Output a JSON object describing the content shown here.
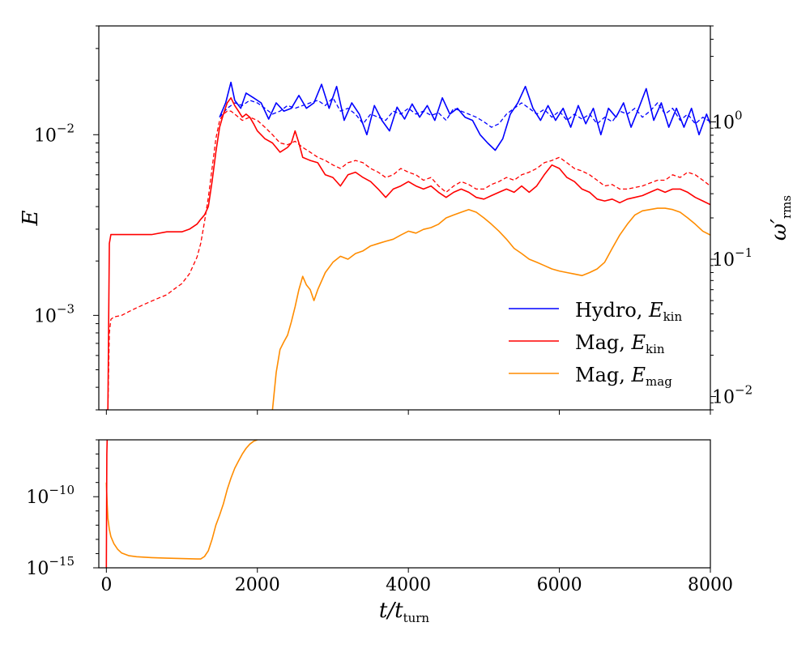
{
  "chart_data": [
    {
      "type": "line",
      "panel": "top",
      "title": "",
      "xlabel": "",
      "ylabel": "E",
      "ylabel_right": "ω′",
      "ylabel_right_sub": "rms",
      "yscale": "log",
      "xlim": [
        -100,
        8000
      ],
      "ylim": [
        0.0003,
        0.04
      ],
      "y2lim": [
        0.008,
        5.0
      ],
      "yticks": [
        {
          "value": 0.001,
          "base": "10",
          "exp": "−3"
        },
        {
          "value": 0.01,
          "base": "10",
          "exp": "−2"
        }
      ],
      "y2ticks": [
        {
          "value": 0.01,
          "base": "10",
          "exp": "−2"
        },
        {
          "value": 0.1,
          "base": "10",
          "exp": "−1"
        },
        {
          "value": 1.0,
          "base": "10",
          "exp": "0"
        }
      ],
      "legend_position": "lower-right",
      "legend": [
        {
          "text": "Hydro, ",
          "sym": "E",
          "sub": "kin",
          "color": "#0000ff"
        },
        {
          "text": "Mag, ",
          "sym": "E",
          "sub": "kin",
          "color": "#ff0000"
        },
        {
          "text": "Mag, ",
          "sym": "E",
          "sub": "mag",
          "color": "#ff8c00"
        }
      ],
      "series": [
        {
          "name": "Hydro, E_kin",
          "color": "#0000ff",
          "style": "solid",
          "x": [
            1500,
            1580,
            1650,
            1700,
            1780,
            1850,
            1950,
            2050,
            2150,
            2250,
            2350,
            2450,
            2550,
            2650,
            2750,
            2850,
            2950,
            3050,
            3150,
            3250,
            3350,
            3450,
            3550,
            3650,
            3750,
            3850,
            3950,
            4050,
            4150,
            4250,
            4350,
            4450,
            4550,
            4650,
            4750,
            4850,
            4950,
            5050,
            5150,
            5250,
            5350,
            5450,
            5550,
            5650,
            5750,
            5850,
            5950,
            6050,
            6150,
            6250,
            6350,
            6450,
            6550,
            6650,
            6750,
            6850,
            6950,
            7050,
            7150,
            7250,
            7350,
            7450,
            7550,
            7650,
            7750,
            7850,
            7950,
            8000
          ],
          "y": [
            0.0125,
            0.015,
            0.0195,
            0.0155,
            0.014,
            0.017,
            0.016,
            0.015,
            0.0122,
            0.015,
            0.0135,
            0.014,
            0.0165,
            0.014,
            0.015,
            0.019,
            0.014,
            0.0185,
            0.012,
            0.015,
            0.013,
            0.01,
            0.0145,
            0.012,
            0.0105,
            0.0142,
            0.0122,
            0.0148,
            0.0125,
            0.0145,
            0.012,
            0.016,
            0.013,
            0.014,
            0.0125,
            0.012,
            0.01,
            0.009,
            0.0082,
            0.0095,
            0.013,
            0.015,
            0.0185,
            0.014,
            0.012,
            0.0145,
            0.012,
            0.014,
            0.011,
            0.0145,
            0.0115,
            0.014,
            0.01,
            0.014,
            0.0125,
            0.015,
            0.011,
            0.014,
            0.018,
            0.012,
            0.015,
            0.011,
            0.014,
            0.011,
            0.014,
            0.01,
            0.013,
            0.0115
          ]
        },
        {
          "name": "Hydro, E_kin (dashed)",
          "color": "#0000ff",
          "style": "dashed",
          "x": [
            1500,
            1600,
            1700,
            1800,
            1900,
            2000,
            2100,
            2200,
            2300,
            2400,
            2500,
            2600,
            2700,
            2800,
            2900,
            3000,
            3100,
            3200,
            3300,
            3400,
            3500,
            3600,
            3700,
            3800,
            3900,
            4000,
            4100,
            4200,
            4300,
            4400,
            4500,
            4600,
            4700,
            4800,
            4900,
            5000,
            5100,
            5200,
            5300,
            5400,
            5500,
            5600,
            5700,
            5800,
            5900,
            6000,
            6100,
            6200,
            6300,
            6400,
            6500,
            6600,
            6700,
            6800,
            6900,
            7000,
            7100,
            7200,
            7300,
            7400,
            7500,
            7600,
            7700,
            7800,
            7900,
            8000
          ],
          "y": [
            0.0125,
            0.014,
            0.015,
            0.0145,
            0.0155,
            0.015,
            0.014,
            0.013,
            0.0135,
            0.0145,
            0.014,
            0.0145,
            0.015,
            0.0155,
            0.0145,
            0.016,
            0.0135,
            0.014,
            0.013,
            0.0115,
            0.013,
            0.0125,
            0.012,
            0.0135,
            0.013,
            0.014,
            0.013,
            0.0135,
            0.0128,
            0.0132,
            0.012,
            0.014,
            0.0135,
            0.013,
            0.0125,
            0.0118,
            0.011,
            0.0115,
            0.013,
            0.014,
            0.015,
            0.014,
            0.013,
            0.0138,
            0.0125,
            0.0135,
            0.012,
            0.013,
            0.0122,
            0.013,
            0.0115,
            0.0125,
            0.0118,
            0.0135,
            0.013,
            0.014,
            0.0125,
            0.0135,
            0.015,
            0.013,
            0.014,
            0.012,
            0.013,
            0.0115,
            0.0125,
            0.0118
          ]
        },
        {
          "name": "Mag, E_kin",
          "color": "#ff0000",
          "style": "solid",
          "x": [
            0,
            20,
            40,
            60,
            100,
            200,
            400,
            600,
            800,
            1000,
            1100,
            1200,
            1250,
            1300,
            1350,
            1400,
            1450,
            1500,
            1550,
            1600,
            1650,
            1700,
            1750,
            1800,
            1850,
            1900,
            1950,
            2000,
            2100,
            2200,
            2300,
            2400,
            2450,
            2500,
            2550,
            2600,
            2700,
            2800,
            2900,
            3000,
            3100,
            3200,
            3300,
            3400,
            3500,
            3600,
            3700,
            3800,
            3900,
            4000,
            4100,
            4200,
            4300,
            4400,
            4500,
            4600,
            4700,
            4800,
            4900,
            5000,
            5100,
            5200,
            5300,
            5400,
            5500,
            5600,
            5700,
            5800,
            5900,
            6000,
            6100,
            6200,
            6300,
            6400,
            6500,
            6600,
            6700,
            6800,
            6900,
            7000,
            7100,
            7200,
            7300,
            7400,
            7500,
            7600,
            7700,
            7800,
            7900,
            8000
          ],
          "y": [
            0.0003,
            0.0003,
            0.0025,
            0.0028,
            0.0028,
            0.0028,
            0.0028,
            0.0028,
            0.0029,
            0.0029,
            0.003,
            0.0032,
            0.0034,
            0.0036,
            0.004,
            0.0055,
            0.008,
            0.011,
            0.013,
            0.015,
            0.016,
            0.0145,
            0.0135,
            0.0125,
            0.013,
            0.0125,
            0.0115,
            0.0105,
            0.0095,
            0.009,
            0.008,
            0.0085,
            0.009,
            0.0105,
            0.009,
            0.0075,
            0.0072,
            0.007,
            0.006,
            0.0058,
            0.0052,
            0.006,
            0.0062,
            0.0058,
            0.0055,
            0.005,
            0.0045,
            0.005,
            0.0052,
            0.0055,
            0.0052,
            0.005,
            0.0052,
            0.0048,
            0.0045,
            0.0048,
            0.005,
            0.0048,
            0.0045,
            0.0044,
            0.0046,
            0.0048,
            0.005,
            0.0048,
            0.0052,
            0.0048,
            0.0052,
            0.006,
            0.0068,
            0.0065,
            0.0058,
            0.0055,
            0.005,
            0.0048,
            0.0044,
            0.0043,
            0.0044,
            0.0042,
            0.0044,
            0.0045,
            0.0046,
            0.0048,
            0.005,
            0.0048,
            0.005,
            0.005,
            0.0048,
            0.0045,
            0.0043,
            0.0041
          ]
        },
        {
          "name": "Mag, E_kin (dashed)",
          "color": "#ff0000",
          "style": "dashed",
          "x": [
            0,
            20,
            40,
            60,
            100,
            200,
            300,
            400,
            500,
            600,
            700,
            800,
            900,
            1000,
            1100,
            1200,
            1250,
            1300,
            1350,
            1400,
            1450,
            1500,
            1550,
            1600,
            1650,
            1700,
            1750,
            1800,
            1900,
            2000,
            2100,
            2200,
            2300,
            2400,
            2500,
            2600,
            2700,
            2800,
            2900,
            3000,
            3100,
            3200,
            3300,
            3400,
            3500,
            3600,
            3700,
            3800,
            3900,
            4000,
            4100,
            4200,
            4300,
            4400,
            4500,
            4600,
            4700,
            4800,
            4900,
            5000,
            5100,
            5200,
            5300,
            5400,
            5500,
            5600,
            5700,
            5800,
            5900,
            6000,
            6100,
            6200,
            6300,
            6400,
            6500,
            6600,
            6700,
            6800,
            6900,
            7000,
            7100,
            7200,
            7300,
            7400,
            7500,
            7600,
            7700,
            7800,
            7900,
            8000
          ],
          "y": [
            0.0003,
            0.0003,
            0.0008,
            0.00095,
            0.00098,
            0.001,
            0.00105,
            0.0011,
            0.00115,
            0.0012,
            0.00125,
            0.0013,
            0.0014,
            0.0015,
            0.0017,
            0.0021,
            0.0025,
            0.0033,
            0.0045,
            0.0065,
            0.0095,
            0.012,
            0.013,
            0.0135,
            0.0135,
            0.013,
            0.0125,
            0.012,
            0.0125,
            0.012,
            0.011,
            0.01,
            0.009,
            0.0088,
            0.0092,
            0.0085,
            0.008,
            0.0075,
            0.0072,
            0.0068,
            0.0065,
            0.007,
            0.0072,
            0.007,
            0.0065,
            0.0062,
            0.0058,
            0.006,
            0.0065,
            0.0062,
            0.006,
            0.0056,
            0.0058,
            0.0052,
            0.0048,
            0.0052,
            0.0055,
            0.0053,
            0.005,
            0.005,
            0.0053,
            0.0055,
            0.0058,
            0.0056,
            0.006,
            0.0062,
            0.0065,
            0.007,
            0.0072,
            0.0075,
            0.007,
            0.0065,
            0.0063,
            0.006,
            0.0056,
            0.0052,
            0.0053,
            0.005,
            0.005,
            0.0051,
            0.0052,
            0.0054,
            0.0056,
            0.0056,
            0.006,
            0.0058,
            0.0062,
            0.006,
            0.0056,
            0.0052
          ]
        },
        {
          "name": "Mag, E_mag (ω′rms)",
          "color": "#ff8c00",
          "style": "solid",
          "axis": "right",
          "x": [
            2200,
            2250,
            2300,
            2350,
            2400,
            2450,
            2500,
            2550,
            2600,
            2650,
            2700,
            2750,
            2800,
            2900,
            3000,
            3100,
            3200,
            3300,
            3400,
            3500,
            3600,
            3700,
            3800,
            3900,
            4000,
            4100,
            4200,
            4300,
            4400,
            4500,
            4600,
            4700,
            4800,
            4900,
            5000,
            5100,
            5200,
            5300,
            5400,
            5500,
            5600,
            5700,
            5800,
            5900,
            6000,
            6100,
            6200,
            6300,
            6400,
            6500,
            6600,
            6700,
            6800,
            6900,
            7000,
            7100,
            7200,
            7300,
            7400,
            7500,
            7600,
            7700,
            7800,
            7900,
            8000
          ],
          "y": [
            0.008,
            0.015,
            0.022,
            0.025,
            0.028,
            0.035,
            0.045,
            0.06,
            0.075,
            0.065,
            0.06,
            0.05,
            0.06,
            0.08,
            0.095,
            0.105,
            0.1,
            0.11,
            0.115,
            0.125,
            0.13,
            0.135,
            0.14,
            0.15,
            0.16,
            0.155,
            0.165,
            0.17,
            0.18,
            0.2,
            0.21,
            0.22,
            0.23,
            0.22,
            0.2,
            0.18,
            0.16,
            0.14,
            0.12,
            0.11,
            0.1,
            0.095,
            0.09,
            0.085,
            0.082,
            0.08,
            0.078,
            0.076,
            0.08,
            0.085,
            0.095,
            0.12,
            0.15,
            0.18,
            0.21,
            0.225,
            0.23,
            0.235,
            0.235,
            0.23,
            0.22,
            0.2,
            0.18,
            0.16,
            0.15
          ]
        }
      ]
    },
    {
      "type": "line",
      "panel": "bottom",
      "title": "",
      "xlabel": "t/t",
      "xlabel_sub": "turn",
      "ylabel": "",
      "yscale": "log",
      "xlim": [
        -100,
        8000
      ],
      "ylim_exp": [
        -15,
        -6
      ],
      "yticks": [
        {
          "exp": -10,
          "base": "10",
          "label": "−10"
        },
        {
          "exp": -15,
          "base": "10",
          "label": "−15"
        }
      ],
      "xticks": [
        0,
        2000,
        4000,
        6000,
        8000
      ],
      "xtick_labels": [
        "0",
        "2000",
        "4000",
        "6000",
        "8000"
      ],
      "series": [
        {
          "name": "Mag, E_mag (log10)",
          "color": "#ff8c00",
          "style": "solid",
          "x": [
            0,
            10,
            20,
            40,
            60,
            100,
            150,
            200,
            300,
            400,
            600,
            800,
            1000,
            1200,
            1250,
            1300,
            1350,
            1400,
            1450,
            1500,
            1550,
            1600,
            1650,
            1700,
            1750,
            1800,
            1850,
            1900,
            1950,
            2000
          ],
          "y": [
            -9.0,
            -10.5,
            -11.5,
            -12.3,
            -12.8,
            -13.3,
            -13.7,
            -13.95,
            -14.15,
            -14.22,
            -14.28,
            -14.32,
            -14.35,
            -14.38,
            -14.38,
            -14.2,
            -13.8,
            -13.0,
            -12.0,
            -11.3,
            -10.5,
            -9.5,
            -8.7,
            -8.0,
            -7.5,
            -7.0,
            -6.6,
            -6.3,
            -6.1,
            -6.0
          ]
        },
        {
          "name": "Mag, E_kin (log10)",
          "color": "#ff0000",
          "style": "solid",
          "x": [
            0,
            3,
            6,
            10
          ],
          "y": [
            -15.0,
            -11.0,
            -7.0,
            -6.0
          ]
        }
      ]
    }
  ]
}
